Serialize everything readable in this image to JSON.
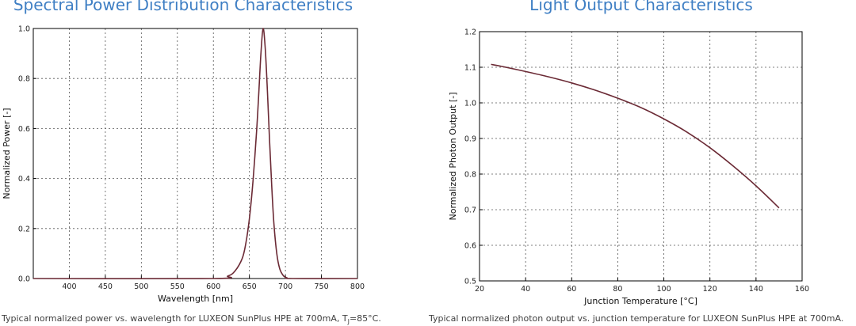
{
  "colors": {
    "title": "#3f7fc4",
    "curve": "#6b2a35",
    "grid": "#555555",
    "caption": "#404040"
  },
  "chart_data": [
    {
      "type": "line",
      "title": "Spectral Power Distribution Characteristics",
      "xlabel": "Wavelength [nm]",
      "ylabel": "Normalized Power [-]",
      "xlim": [
        350,
        800
      ],
      "ylim": [
        0,
        1.0
      ],
      "xticks": [
        400,
        450,
        500,
        550,
        600,
        650,
        700,
        750,
        800
      ],
      "xtick_labels": [
        "400",
        "450",
        "500",
        "550",
        "600",
        "650",
        "700",
        "750",
        "800"
      ],
      "yticks": [
        0.0,
        0.2,
        0.4,
        0.6,
        0.8,
        1.0
      ],
      "ytick_labels": [
        "0.0",
        "0.2",
        "0.4",
        "0.6",
        "0.8",
        "1.0"
      ],
      "grid": true,
      "series": [
        {
          "x": [
            350,
            600,
            620,
            630,
            640,
            645,
            650,
            655,
            660,
            663,
            666,
            669,
            672,
            675,
            678,
            681,
            684,
            688,
            692,
            697,
            702,
            710,
            800
          ],
          "values": [
            0,
            0,
            0.01,
            0.03,
            0.08,
            0.14,
            0.24,
            0.39,
            0.59,
            0.74,
            0.9,
            1.0,
            0.92,
            0.75,
            0.55,
            0.37,
            0.22,
            0.1,
            0.04,
            0.012,
            0.003,
            0,
            0
          ]
        }
      ],
      "caption_main": "Typical normalized power vs. wavelength for LUXEON SunPlus HPE at 700mA, T",
      "caption_sub": "J",
      "caption_end": "=85°C."
    },
    {
      "type": "line",
      "title": "Light Output Characteristics",
      "xlabel": "Junction Temperature [°C]",
      "ylabel": "Normalized Photon Output [-]",
      "xlim": [
        20,
        160
      ],
      "ylim": [
        0.5,
        1.2
      ],
      "xticks": [
        20,
        40,
        60,
        80,
        100,
        120,
        140,
        160
      ],
      "xtick_labels": [
        "20",
        "40",
        "60",
        "80",
        "100",
        "120",
        "140",
        "160"
      ],
      "yticks": [
        0.5,
        0.6,
        0.7,
        0.8,
        0.9,
        1.0,
        1.1,
        1.2
      ],
      "ytick_labels": [
        "0.5",
        "0.6",
        "0.7",
        "0.8",
        "0.9",
        "1.0",
        "1.1",
        "1.2"
      ],
      "grid": true,
      "series": [
        {
          "x": [
            25,
            30,
            40,
            50,
            60,
            70,
            80,
            90,
            100,
            110,
            120,
            130,
            140,
            150
          ],
          "values": [
            1.108,
            1.102,
            1.088,
            1.073,
            1.056,
            1.036,
            1.013,
            0.987,
            0.955,
            0.918,
            0.874,
            0.823,
            0.767,
            0.705
          ]
        }
      ],
      "caption": "Typical normalized photon output vs. junction temperature for LUXEON SunPlus HPE at 700mA."
    }
  ]
}
